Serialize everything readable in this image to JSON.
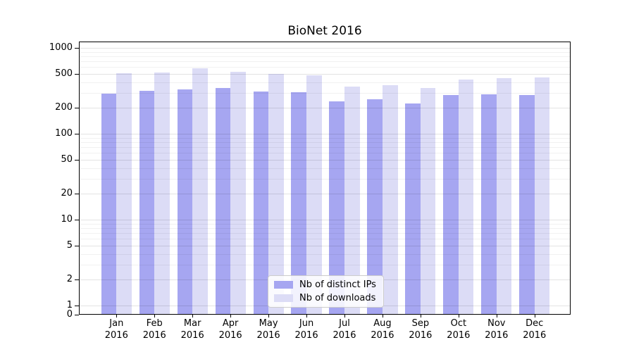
{
  "title": "BioNet 2016",
  "legend": {
    "items": [
      {
        "label": "Nb of distinct IPs",
        "color": "#a6a6f1"
      },
      {
        "label": "Nb of downloads",
        "color": "#dcdcf6"
      }
    ]
  },
  "chart_data": {
    "type": "bar",
    "title": "BioNet 2016",
    "categories": [
      "Jan 2016",
      "Feb 2016",
      "Mar 2016",
      "Apr 2016",
      "May 2016",
      "Jun 2016",
      "Jul 2016",
      "Aug 2016",
      "Sep 2016",
      "Oct 2016",
      "Nov 2016",
      "Dec 2016"
    ],
    "series": [
      {
        "name": "Nb of distinct IPs",
        "color": "#a6a6f1",
        "values": [
          295,
          315,
          330,
          340,
          310,
          305,
          240,
          250,
          225,
          285,
          290,
          285
        ]
      },
      {
        "name": "Nb of downloads",
        "color": "#dcdcf6",
        "values": [
          505,
          515,
          580,
          525,
          495,
          480,
          355,
          365,
          340,
          425,
          445,
          450
        ]
      }
    ],
    "xlabel": "",
    "ylabel": "",
    "yscale": "symlog",
    "y_ticks": [
      0,
      1,
      2,
      5,
      10,
      20,
      50,
      100,
      200,
      500,
      1000
    ],
    "ylim": [
      0,
      1200
    ],
    "grid": "horizontal, major and minor",
    "legend_position": "lower center"
  }
}
